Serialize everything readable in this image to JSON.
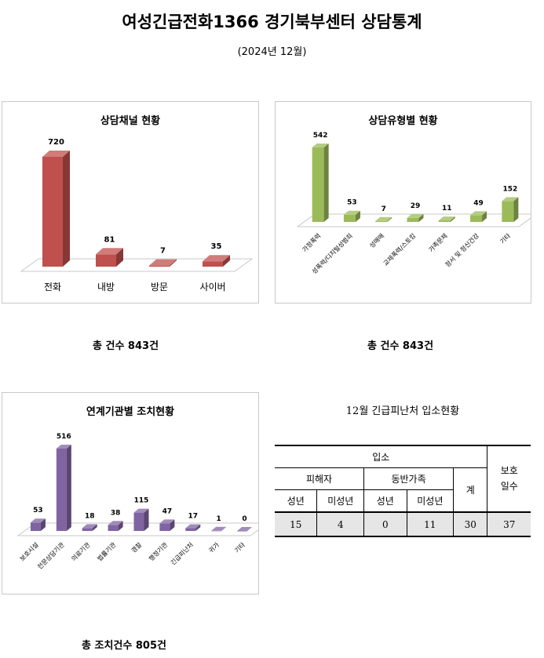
{
  "header": {
    "title": "여성긴급전화1366 경기북부센터 상담통계",
    "subtitle": "(2024년 12월)"
  },
  "chart_data": [
    {
      "type": "bar",
      "title": "상담채널 현황",
      "categories": [
        "전화",
        "내방",
        "방문",
        "사이버"
      ],
      "values": [
        720,
        81,
        7,
        35
      ],
      "color": "#c0504d",
      "total_label": "총 건수 843건"
    },
    {
      "type": "bar",
      "title": "상담유형별 현황",
      "categories": [
        "가정폭력",
        "성폭력/디지털성범죄",
        "성매매",
        "교제폭력/스토킹",
        "가족문제",
        "정서 및 정신건강",
        "기타"
      ],
      "values": [
        542,
        53,
        7,
        29,
        11,
        49,
        152
      ],
      "color": "#9bbb59",
      "total_label": "총 건수 843건"
    },
    {
      "type": "bar",
      "title": "연계기관별 조치현황",
      "categories": [
        "보호시설",
        "전문상담기관",
        "의료기관",
        "법률기관",
        "경찰",
        "행정기관",
        "긴급피난처",
        "귀가",
        "기타"
      ],
      "values": [
        53,
        516,
        18,
        38,
        115,
        47,
        17,
        1,
        0
      ],
      "color": "#8064a2",
      "total_label": "총 조치건수 805건"
    }
  ],
  "intake": {
    "title": "12월 긴급피난처 입소현황",
    "header_admission": "입소",
    "header_protection_days": "보호\n일수",
    "header_victim": "피해자",
    "header_companion": "동반가족",
    "header_total": "계",
    "header_adult": "성년",
    "header_minor": "미성년",
    "values": {
      "victim_adult": "15",
      "victim_minor": "4",
      "companion_adult": "0",
      "companion_minor": "11",
      "total": "30",
      "protection_days": "37"
    }
  }
}
